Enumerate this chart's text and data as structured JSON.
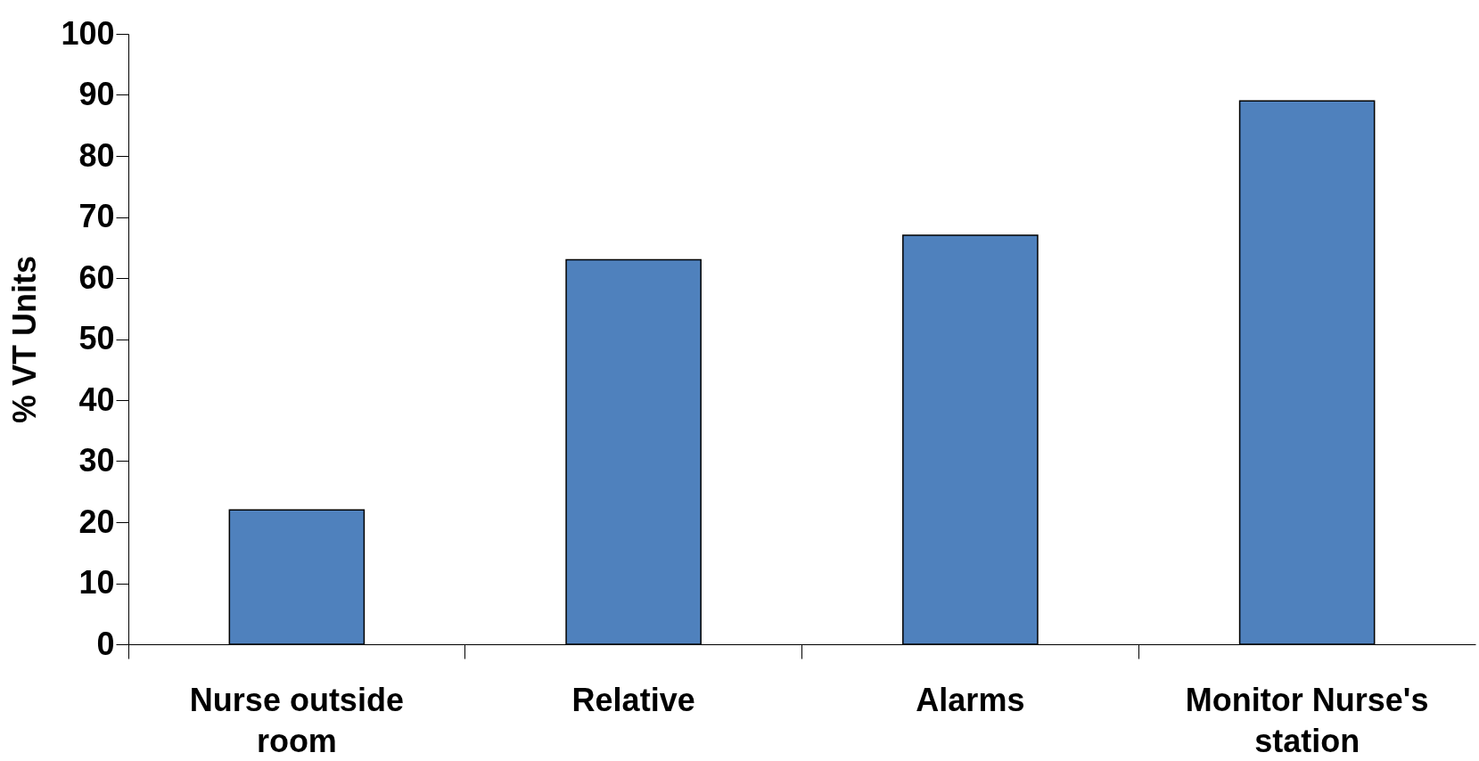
{
  "chart_data": {
    "type": "bar",
    "ylabel": "% VT Units",
    "categories": [
      "Nurse outside room",
      "Relative",
      "Alarms",
      "Monitor Nurse's station"
    ],
    "values": [
      22,
      63,
      67,
      89
    ],
    "color": "#4f81bd",
    "ylim": [
      0,
      100
    ],
    "yticks": [
      0,
      10,
      20,
      30,
      40,
      50,
      60,
      70,
      80,
      90,
      100
    ],
    "grid": false
  }
}
